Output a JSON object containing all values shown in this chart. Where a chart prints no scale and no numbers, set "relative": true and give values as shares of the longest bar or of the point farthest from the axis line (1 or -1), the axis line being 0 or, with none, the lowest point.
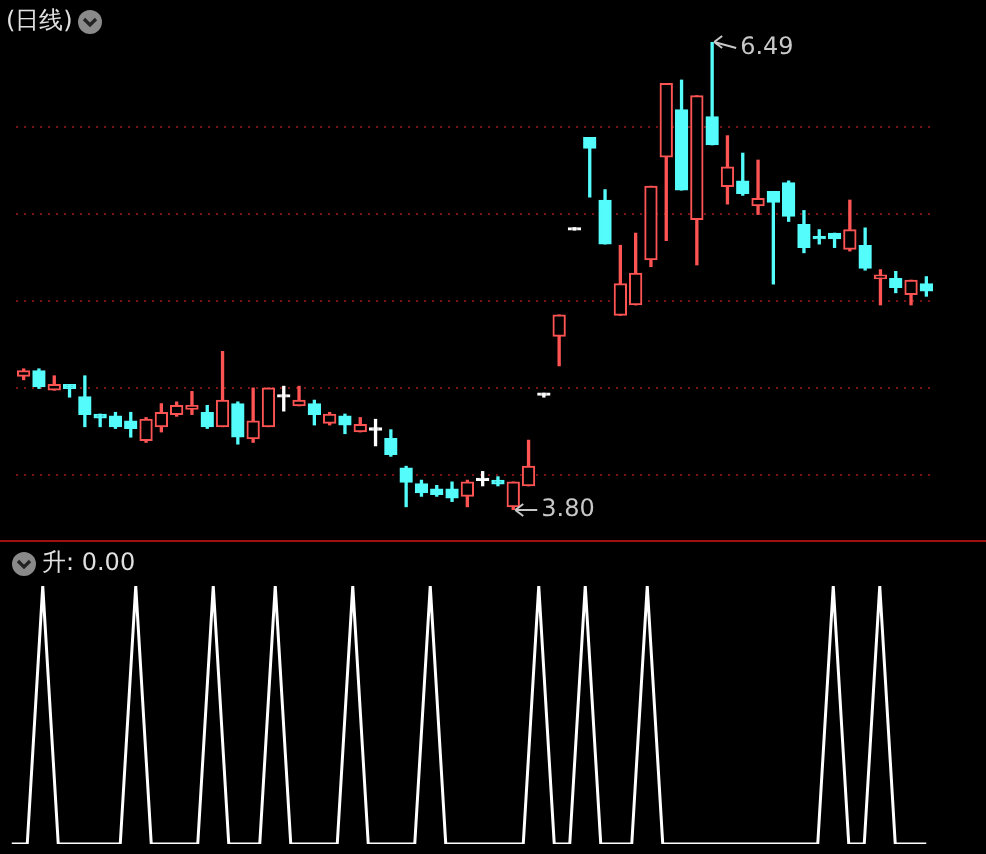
{
  "chart_data": [
    {
      "type": "candlestick",
      "title": "(日线)",
      "categories": [
        null,
        null,
        null,
        null,
        null,
        null,
        null,
        null,
        null,
        null,
        null,
        null,
        null,
        null,
        null,
        null,
        null,
        null,
        null,
        null,
        null,
        null,
        null,
        null,
        null,
        null,
        null,
        null,
        null,
        null,
        null,
        null,
        null,
        null,
        null,
        null,
        null,
        null,
        null,
        null,
        null,
        null,
        null,
        null,
        null,
        null,
        null,
        null,
        null,
        null,
        null,
        null,
        null,
        null,
        null,
        null,
        null,
        null,
        null,
        null
      ],
      "ohlc": [
        [
          4.57,
          4.61,
          4.55,
          4.6
        ],
        [
          4.6,
          4.61,
          4.5,
          4.51
        ],
        [
          4.49,
          4.57,
          4.49,
          4.52
        ],
        [
          4.52,
          4.52,
          4.45,
          4.5
        ],
        [
          4.45,
          4.57,
          4.28,
          4.35
        ],
        [
          4.35,
          4.35,
          4.28,
          4.33
        ],
        [
          4.34,
          4.36,
          4.27,
          4.28
        ],
        [
          4.31,
          4.36,
          4.22,
          4.27
        ],
        [
          4.2,
          4.33,
          4.19,
          4.32
        ],
        [
          4.28,
          4.41,
          4.25,
          4.36
        ],
        [
          4.35,
          4.42,
          4.34,
          4.4
        ],
        [
          4.38,
          4.48,
          4.35,
          4.4
        ],
        [
          4.36,
          4.4,
          4.27,
          4.28
        ],
        [
          4.28,
          4.71,
          4.28,
          4.43
        ],
        [
          4.41,
          4.42,
          4.18,
          4.22
        ],
        [
          4.21,
          4.5,
          4.19,
          4.31
        ],
        [
          4.28,
          4.5,
          4.28,
          4.5
        ],
        [
          4.45,
          4.51,
          4.37,
          4.45
        ],
        [
          4.4,
          4.51,
          4.4,
          4.43
        ],
        [
          4.41,
          4.43,
          4.29,
          4.35
        ],
        [
          4.3,
          4.36,
          4.29,
          4.35
        ],
        [
          4.34,
          4.35,
          4.24,
          4.29
        ],
        [
          4.25,
          4.33,
          4.25,
          4.29
        ],
        [
          4.26,
          4.32,
          4.17,
          4.26
        ],
        [
          4.21,
          4.26,
          4.11,
          4.12
        ],
        [
          4.04,
          4.05,
          3.82,
          3.96
        ],
        [
          3.95,
          3.97,
          3.88,
          3.9
        ],
        [
          3.92,
          3.94,
          3.88,
          3.89
        ],
        [
          3.92,
          3.96,
          3.85,
          3.87
        ],
        [
          3.88,
          3.97,
          3.82,
          3.96
        ],
        [
          3.97,
          4.02,
          3.94,
          3.97
        ],
        [
          3.97,
          3.99,
          3.94,
          3.95
        ],
        [
          3.82,
          3.96,
          3.8,
          3.96
        ],
        [
          3.94,
          4.2,
          3.94,
          4.05
        ],
        [
          4.46,
          4.47,
          4.45,
          4.46
        ],
        [
          4.8,
          4.92,
          4.63,
          4.92
        ],
        [
          5.41,
          5.41,
          5.41,
          5.41
        ],
        [
          5.94,
          5.94,
          5.6,
          5.88
        ],
        [
          5.58,
          5.64,
          5.33,
          5.33
        ],
        [
          4.92,
          5.32,
          4.92,
          5.1
        ],
        [
          4.98,
          5.39,
          4.98,
          5.16
        ],
        [
          5.24,
          5.66,
          5.2,
          5.66
        ],
        [
          5.83,
          6.25,
          5.35,
          6.25
        ],
        [
          6.1,
          6.27,
          5.64,
          5.64
        ],
        [
          5.47,
          6.18,
          5.21,
          6.18
        ],
        [
          6.06,
          6.49,
          5.9,
          5.9
        ],
        [
          5.66,
          5.95,
          5.56,
          5.77
        ],
        [
          5.69,
          5.85,
          5.61,
          5.62
        ],
        [
          5.55,
          5.81,
          5.5,
          5.59
        ],
        [
          5.63,
          5.63,
          5.1,
          5.57
        ],
        [
          5.68,
          5.69,
          5.46,
          5.49
        ],
        [
          5.44,
          5.52,
          5.28,
          5.31
        ],
        [
          5.37,
          5.41,
          5.33,
          5.36
        ],
        [
          5.39,
          5.39,
          5.31,
          5.36
        ],
        [
          5.3,
          5.58,
          5.29,
          5.41
        ],
        [
          5.32,
          5.42,
          5.18,
          5.19
        ],
        [
          5.13,
          5.18,
          4.98,
          5.15
        ],
        [
          5.13,
          5.17,
          5.05,
          5.08
        ],
        [
          5.04,
          5.12,
          4.98,
          5.12
        ],
        [
          5.1,
          5.14,
          5.03,
          5.06
        ]
      ],
      "colors": [
        "#ff5454",
        "#54fcfc",
        "#ff5454",
        "#54fcfc",
        "#54fcfc",
        "#54fcfc",
        "#54fcfc",
        "#54fcfc",
        "#ff5454",
        "#ff5454",
        "#ff5454",
        "#ff5454",
        "#54fcfc",
        "#ff5454",
        "#54fcfc",
        "#ff5454",
        "#ff5454",
        "#ffffff",
        "#ff5454",
        "#54fcfc",
        "#ff5454",
        "#54fcfc",
        "#ff5454",
        "#ffffff",
        "#54fcfc",
        "#54fcfc",
        "#54fcfc",
        "#54fcfc",
        "#54fcfc",
        "#ff5454",
        "#ffffff",
        "#54fcfc",
        "#ff5454",
        "#ff5454",
        "#ffffff",
        "#ff5454",
        "#ffffff",
        "#54fcfc",
        "#54fcfc",
        "#ff5454",
        "#ff5454",
        "#ff5454",
        "#ff5454",
        "#54fcfc",
        "#ff5454",
        "#54fcfc",
        "#ff5454",
        "#54fcfc",
        "#ff5454",
        "#54fcfc",
        "#54fcfc",
        "#54fcfc",
        "#54fcfc",
        "#54fcfc",
        "#ff5454",
        "#54fcfc",
        "#ff5454",
        "#54fcfc",
        "#ff5454",
        "#54fcfc"
      ],
      "yticks": [
        {
          "value": 4.0,
          "label": null
        },
        {
          "value": 4.5,
          "label": null
        },
        {
          "value": 5.0,
          "label": null
        },
        {
          "value": 5.5,
          "label": null
        },
        {
          "value": 6.0,
          "label": null
        }
      ],
      "grid": "y",
      "annotations": [
        "6.49",
        "3.80"
      ]
    },
    {
      "type": "line",
      "title": "升: 0.00",
      "relative": true,
      "categories": [
        null,
        null,
        null,
        null,
        null,
        null,
        null,
        null,
        null,
        null,
        null,
        null,
        null,
        null,
        null,
        null,
        null,
        null,
        null,
        null,
        null,
        null,
        null,
        null,
        null,
        null,
        null,
        null,
        null,
        null,
        null,
        null,
        null,
        null,
        null,
        null,
        null,
        null,
        null,
        null,
        null,
        null,
        null,
        null,
        null,
        null,
        null,
        null,
        null,
        null,
        null,
        null,
        null,
        null,
        null,
        null,
        null,
        null,
        null,
        null
      ],
      "series": [
        {
          "color": "#ffffff",
          "values": [
            0,
            0,
            1,
            0,
            0,
            0,
            0,
            0,
            1,
            0,
            0,
            0,
            0,
            1,
            0,
            0,
            0,
            1,
            0,
            0,
            0,
            0,
            1,
            0,
            0,
            0,
            0,
            1,
            0,
            0,
            0,
            0,
            0,
            0,
            1,
            0,
            0,
            1,
            0,
            0,
            0,
            1,
            0,
            0,
            0,
            0,
            0,
            0,
            0,
            0,
            0,
            0,
            0,
            1,
            0,
            0,
            1,
            0,
            0,
            0
          ]
        }
      ]
    }
  ]
}
